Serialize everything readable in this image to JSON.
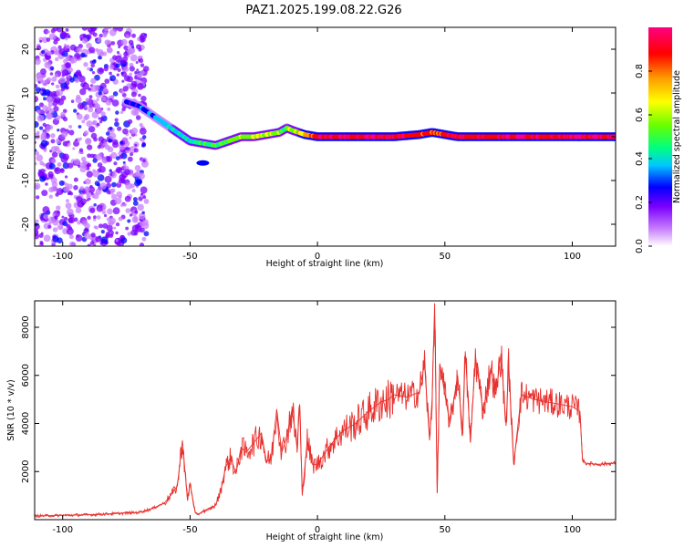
{
  "title": "PAZ1.2025.199.08.22.G26",
  "chart_data": [
    {
      "type": "heatmap",
      "xlabel": "Height of straight line (km)",
      "ylabel": "Frequency (Hz)",
      "xlim": [
        -111,
        117
      ],
      "ylim": [
        -25,
        25
      ],
      "xticks": [
        -100,
        -50,
        0,
        50,
        100
      ],
      "yticks": [
        -20,
        -10,
        0,
        10,
        20
      ],
      "colorbar": {
        "label": "Normalized spectral amplitude",
        "range": [
          0,
          1
        ],
        "ticks": [
          "0.0",
          "0.2",
          "0.4",
          "0.6",
          "0.8"
        ],
        "colors": [
          "#ffffff",
          "#c77dff",
          "#7b00ff",
          "#0000ff",
          "#00c8ff",
          "#00ff80",
          "#66ff00",
          "#ffff00",
          "#ff9900",
          "#ff0000",
          "#ff0080"
        ]
      },
      "ridge": {
        "x": [
          -75,
          -70,
          -65,
          -60,
          -55,
          -50,
          -45,
          -40,
          -35,
          -30,
          -25,
          -20,
          -15,
          -12,
          -10,
          -5,
          0,
          10,
          20,
          30,
          40,
          45,
          50,
          55,
          60,
          70,
          75,
          80,
          90,
          100,
          110,
          117
        ],
        "frequency": [
          8,
          7,
          5,
          3,
          1,
          -1,
          -1.5,
          -2,
          -1,
          0,
          0,
          0.5,
          1,
          2,
          1.5,
          0.5,
          0,
          0,
          0,
          0,
          0.5,
          1,
          0.5,
          0,
          0,
          0,
          0,
          0,
          0,
          0,
          0,
          0
        ],
        "amplitude": [
          0.25,
          0.3,
          0.35,
          0.4,
          0.45,
          0.45,
          0.5,
          0.5,
          0.55,
          0.6,
          0.65,
          0.7,
          0.6,
          0.55,
          0.65,
          0.75,
          0.9,
          0.95,
          0.95,
          0.95,
          0.9,
          0.85,
          0.9,
          0.95,
          0.95,
          0.9,
          0.95,
          0.95,
          0.95,
          0.95,
          0.95,
          0.95
        ]
      },
      "secondary_blob": {
        "x": -45,
        "frequency": -6,
        "amplitude": 0.3
      },
      "noise_region": {
        "x_range": [
          -111,
          -67
        ],
        "frequency_range": [
          -25,
          25
        ],
        "amplitude": 0.15
      }
    },
    {
      "type": "line",
      "xlabel": "Height of straight line (km)",
      "ylabel": "SNR (10 * v/v)",
      "xlim": [
        -111,
        117
      ],
      "ylim": [
        0,
        9100
      ],
      "xticks": [
        -100,
        -50,
        0,
        50,
        100
      ],
      "yticks": [
        2000,
        4000,
        6000,
        8000
      ],
      "color": "#e8302d",
      "x": [
        -111,
        -100,
        -90,
        -80,
        -70,
        -65,
        -60,
        -57,
        -55,
        -53,
        -51,
        -50,
        -48,
        -47,
        -45,
        -43,
        -40,
        -38,
        -36,
        -34,
        -32,
        -30,
        -28,
        -25,
        -22,
        -20,
        -18,
        -16,
        -14,
        -12,
        -10,
        -8,
        -7,
        -6,
        -4,
        -2,
        0,
        5,
        10,
        15,
        20,
        25,
        28,
        30,
        35,
        40,
        42,
        44,
        45,
        46,
        47,
        48,
        50,
        52,
        55,
        57,
        58,
        60,
        62,
        65,
        68,
        70,
        72,
        74,
        75,
        77,
        80,
        85,
        90,
        95,
        100,
        103,
        104,
        105,
        110,
        117
      ],
      "y": [
        150,
        180,
        200,
        250,
        300,
        450,
        700,
        1100,
        1400,
        3300,
        800,
        1500,
        300,
        200,
        350,
        400,
        600,
        1200,
        2200,
        2600,
        1900,
        3000,
        2800,
        3200,
        3600,
        2400,
        2600,
        4600,
        2800,
        3500,
        4600,
        3000,
        4800,
        1000,
        3300,
        2300,
        2300,
        3100,
        3700,
        4000,
        4500,
        4900,
        5000,
        5200,
        5100,
        5300,
        6500,
        3300,
        5000,
        9000,
        1100,
        6500,
        5200,
        4000,
        6000,
        3600,
        7000,
        3200,
        6800,
        4500,
        6300,
        5200,
        6900,
        3900,
        6500,
        2300,
        5200,
        5000,
        4900,
        4800,
        4700,
        4500,
        2500,
        2350,
        2300,
        2350
      ]
    }
  ]
}
